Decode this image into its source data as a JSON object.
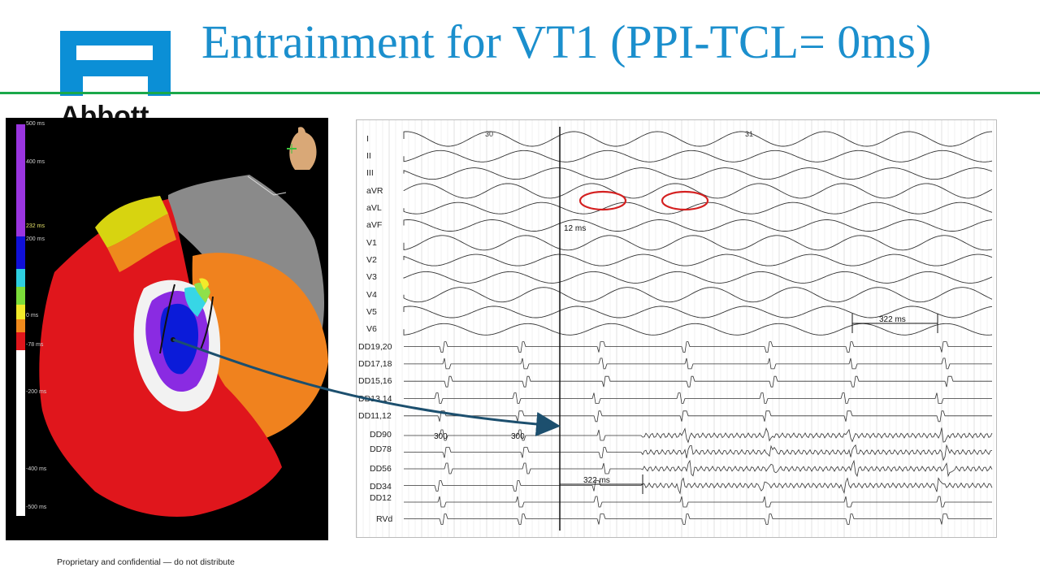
{
  "header": {
    "title": "Entrainment for VT1 (PPI-TCL= 0ms)",
    "logo_text": "Abbott"
  },
  "colors": {
    "title_blue": "#1b8fcd",
    "logo_blue": "#0b8fd6",
    "rule_green": "#1aa84a",
    "circle_red": "#d42020",
    "arrow_navy": "#1c4f6e"
  },
  "map": {
    "scale_labels": [
      "500 ms",
      "400 ms",
      "232 ms",
      "200 ms",
      "0 ms",
      "-78 ms",
      "-200 ms",
      "-400 ms",
      "-500 ms"
    ],
    "icons": [
      "torso-orientation-icon"
    ]
  },
  "ecg": {
    "leads": [
      "I",
      "II",
      "III",
      "aVR",
      "aVL",
      "aVF",
      "V1",
      "V2",
      "V3",
      "V4",
      "V5",
      "V6",
      "DD19,20",
      "DD17,18",
      "DD15,16",
      "DD13,14",
      "DD11,12",
      "DD90",
      "DD78",
      "DD56",
      "DD34",
      "DD12",
      "RVd"
    ],
    "beat_numbers": [
      "30",
      "31"
    ],
    "annotations": {
      "interval_12": "12 ms",
      "cycle_length_surface": "322 ms",
      "ppi": "322 ms",
      "pacing_1": "300",
      "pacing_2": "300"
    }
  },
  "footer": {
    "text": "Proprietary and confidential — do not distribute"
  }
}
